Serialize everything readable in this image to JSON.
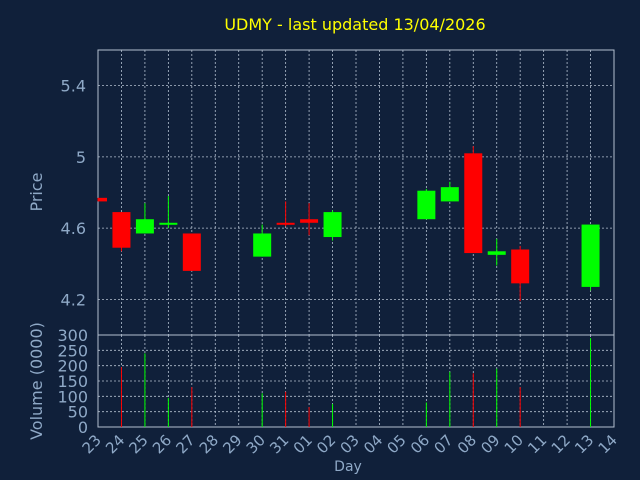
{
  "chart_data": [
    {
      "type": "candlestick",
      "title": "UDMY - last updated 13/04/2026",
      "ylabel": "Price",
      "ylim": [
        4.0,
        5.6
      ],
      "yticks": [
        "4.2",
        "4.6",
        "5",
        "5.4"
      ],
      "grid": true,
      "x": [
        "23",
        "24",
        "25",
        "26",
        "27",
        "28",
        "29",
        "30",
        "31",
        "01",
        "02",
        "03",
        "04",
        "05",
        "06",
        "07",
        "08",
        "09",
        "10",
        "11",
        "12",
        "13",
        "14"
      ],
      "candles": [
        {
          "day": "23",
          "open": 4.77,
          "close": 4.75,
          "high": 4.77,
          "low": 4.75
        },
        {
          "day": "24",
          "open": 4.69,
          "close": 4.49,
          "high": 4.69,
          "low": 4.47
        },
        {
          "day": "25",
          "open": 4.57,
          "close": 4.65,
          "high": 4.74,
          "low": 4.57
        },
        {
          "day": "26",
          "open": 4.62,
          "close": 4.63,
          "high": 4.78,
          "low": 4.6
        },
        {
          "day": "27",
          "open": 4.57,
          "close": 4.36,
          "high": 4.57,
          "low": 4.36
        },
        {
          "day": "30",
          "open": 4.44,
          "close": 4.57,
          "high": 4.62,
          "low": 4.44
        },
        {
          "day": "31",
          "open": 4.63,
          "close": 4.62,
          "high": 4.75,
          "low": 4.61
        },
        {
          "day": "01",
          "open": 4.65,
          "close": 4.63,
          "high": 4.74,
          "low": 4.56
        },
        {
          "day": "02",
          "open": 4.55,
          "close": 4.69,
          "high": 4.7,
          "low": 4.53
        },
        {
          "day": "06",
          "open": 4.65,
          "close": 4.81,
          "high": 4.82,
          "low": 4.65
        },
        {
          "day": "07",
          "open": 4.75,
          "close": 4.83,
          "high": 4.86,
          "low": 4.75
        },
        {
          "day": "08",
          "open": 5.02,
          "close": 4.46,
          "high": 5.06,
          "low": 4.46
        },
        {
          "day": "09",
          "open": 4.45,
          "close": 4.47,
          "high": 4.54,
          "low": 4.39
        },
        {
          "day": "10",
          "open": 4.48,
          "close": 4.29,
          "high": 4.5,
          "low": 4.19
        },
        {
          "day": "13",
          "open": 4.27,
          "close": 4.62,
          "high": 4.62,
          "low": 4.25
        }
      ],
      "colors": {
        "up": "#00ff00",
        "down": "#ff0000"
      }
    },
    {
      "type": "bar",
      "ylabel": "Volume (0000)",
      "xlabel": "Day",
      "ylim": [
        0,
        300
      ],
      "yticks": [
        "0",
        "50",
        "100",
        "150",
        "200",
        "250",
        "300"
      ],
      "categories": [
        "24",
        "25",
        "26",
        "27",
        "30",
        "31",
        "01",
        "02",
        "06",
        "07",
        "08",
        "09",
        "10",
        "13"
      ],
      "values": [
        195,
        240,
        95,
        130,
        110,
        115,
        65,
        75,
        80,
        180,
        175,
        190,
        130,
        290
      ],
      "bar_colors": [
        "#ff0000",
        "#00ff00",
        "#00ff00",
        "#ff0000",
        "#00ff00",
        "#ff0000",
        "#ff0000",
        "#00ff00",
        "#00ff00",
        "#00ff00",
        "#ff0000",
        "#00ff00",
        "#ff0000",
        "#00ff00"
      ]
    }
  ],
  "colors": {
    "background": "#10203a",
    "title": "#ffff00",
    "text": "#8fa9c7",
    "grid": "#b4c0d0",
    "axes": "#b4c0d0"
  }
}
